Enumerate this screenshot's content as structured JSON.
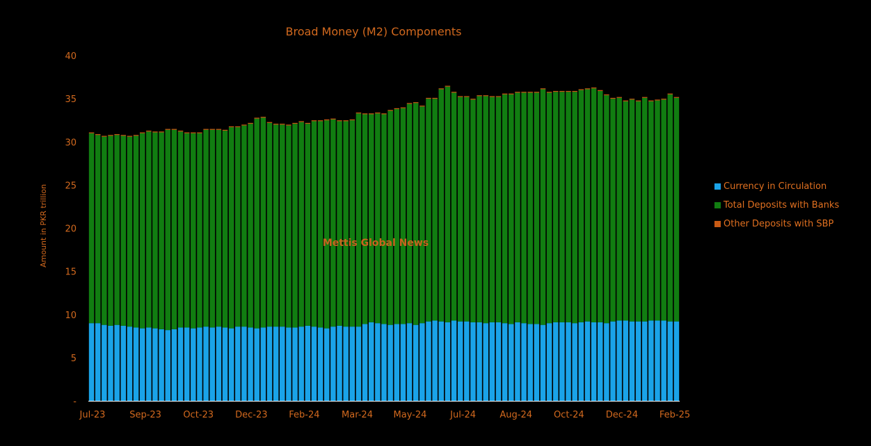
{
  "chart_data": {
    "type": "bar",
    "stacked": true,
    "title": "Broad Money (M2) Components",
    "ylabel": "Amount in PKR trillion",
    "xlabel": "",
    "ylim": [
      0,
      40
    ],
    "yticks": [
      "-",
      "5",
      "10",
      "15",
      "20",
      "25",
      "30",
      "35",
      "40"
    ],
    "xtick_labels": [
      "Jul-23",
      "Sep-23",
      "Oct-23",
      "Dec-23",
      "Feb-24",
      "Mar-24",
      "May-24",
      "Jul-24",
      "Aug-24",
      "Oct-24",
      "Dec-24",
      "Feb-25"
    ],
    "watermark": "Mettis Global News",
    "grid": false,
    "legend_position": "right",
    "series": [
      {
        "name": "Currency in Circulation",
        "color": "#1aa3e8",
        "values": [
          9.0,
          9.0,
          8.8,
          8.7,
          8.8,
          8.7,
          8.6,
          8.5,
          8.4,
          8.5,
          8.4,
          8.3,
          8.2,
          8.3,
          8.5,
          8.5,
          8.4,
          8.5,
          8.6,
          8.5,
          8.6,
          8.5,
          8.4,
          8.6,
          8.6,
          8.5,
          8.4,
          8.5,
          8.6,
          8.6,
          8.6,
          8.5,
          8.5,
          8.6,
          8.7,
          8.6,
          8.5,
          8.4,
          8.6,
          8.7,
          8.6,
          8.6,
          8.6,
          8.9,
          9.1,
          9.0,
          8.9,
          8.8,
          8.9,
          8.9,
          9.0,
          8.8,
          9.0,
          9.2,
          9.3,
          9.2,
          9.1,
          9.3,
          9.2,
          9.2,
          9.1,
          9.1,
          9.0,
          9.1,
          9.1,
          9.0,
          8.9,
          9.1,
          9.0,
          8.9,
          8.9,
          8.8,
          9.0,
          9.1,
          9.1,
          9.1,
          9.0,
          9.1,
          9.2,
          9.1,
          9.1,
          9.0,
          9.2,
          9.3,
          9.3,
          9.2,
          9.2,
          9.2,
          9.3,
          9.3,
          9.3,
          9.2,
          9.2
        ]
      },
      {
        "name": "Total Deposits with Banks",
        "color": "#117d11",
        "values": [
          22.0,
          21.8,
          21.8,
          22.0,
          22.0,
          22.0,
          22.0,
          22.2,
          22.6,
          22.7,
          22.7,
          22.8,
          23.2,
          23.1,
          22.7,
          22.5,
          22.6,
          22.5,
          22.8,
          22.9,
          22.8,
          22.8,
          23.3,
          23.1,
          23.3,
          23.6,
          24.3,
          24.3,
          23.6,
          23.4,
          23.4,
          23.4,
          23.6,
          23.7,
          23.4,
          23.8,
          23.9,
          24.1,
          24.0,
          23.7,
          23.8,
          23.9,
          24.7,
          24.3,
          24.1,
          24.3,
          24.3,
          24.8,
          24.9,
          25.0,
          25.4,
          25.7,
          25.1,
          25.8,
          25.7,
          26.9,
          27.3,
          26.4,
          26.0,
          26.0,
          25.8,
          26.2,
          26.3,
          26.1,
          26.1,
          26.5,
          26.6,
          26.6,
          26.7,
          26.8,
          26.8,
          27.3,
          26.7,
          26.7,
          26.7,
          26.7,
          26.8,
          26.9,
          26.9,
          27.1,
          26.8,
          26.4,
          25.8,
          25.8,
          25.4,
          25.7,
          25.5,
          25.9,
          25.4,
          25.5,
          25.6,
          26.3,
          25.9
        ]
      },
      {
        "name": "Other Deposits with SBP",
        "color": "#c85a14",
        "values": [
          0.1,
          0.1,
          0.1,
          0.1,
          0.1,
          0.1,
          0.1,
          0.1,
          0.1,
          0.1,
          0.1,
          0.1,
          0.1,
          0.1,
          0.1,
          0.1,
          0.1,
          0.1,
          0.1,
          0.1,
          0.1,
          0.1,
          0.1,
          0.1,
          0.1,
          0.1,
          0.1,
          0.1,
          0.1,
          0.1,
          0.1,
          0.1,
          0.1,
          0.1,
          0.1,
          0.1,
          0.1,
          0.1,
          0.1,
          0.1,
          0.1,
          0.1,
          0.1,
          0.1,
          0.1,
          0.1,
          0.1,
          0.1,
          0.1,
          0.1,
          0.1,
          0.1,
          0.1,
          0.1,
          0.1,
          0.1,
          0.1,
          0.1,
          0.1,
          0.1,
          0.1,
          0.1,
          0.1,
          0.1,
          0.1,
          0.1,
          0.1,
          0.1,
          0.1,
          0.1,
          0.1,
          0.1,
          0.1,
          0.1,
          0.1,
          0.1,
          0.1,
          0.1,
          0.1,
          0.1,
          0.1,
          0.1,
          0.1,
          0.1,
          0.1,
          0.1,
          0.1,
          0.1,
          0.1,
          0.1,
          0.1,
          0.1,
          0.1
        ]
      }
    ]
  },
  "colors": {
    "background": "#000000",
    "text_accent": "#d2691e",
    "axis_line": "#ffffff",
    "legend_text": "#e07020",
    "watermark": "#c8641e"
  }
}
